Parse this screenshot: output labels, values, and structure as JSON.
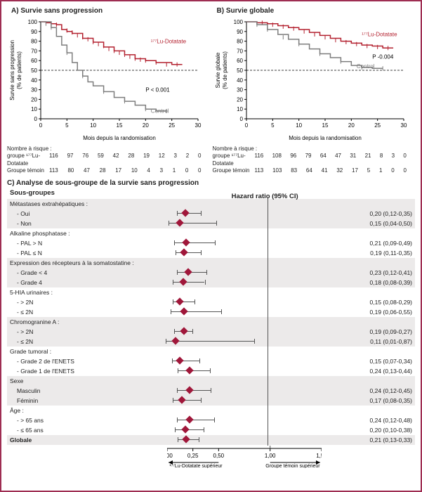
{
  "panelA": {
    "letter": "A)",
    "title": "Survie sans progression",
    "ylabel": "Survie sans progression\n(% de patients)",
    "xlabel": "Mois depuis la randomisation",
    "ylim": [
      0,
      100
    ],
    "ytick_step": 10,
    "xlim": [
      0,
      30
    ],
    "xtick_step": 5,
    "ref_line_y": 50,
    "p_text": "P < 0.001",
    "p_pos": [
      20,
      28
    ],
    "series": [
      {
        "name": "177Lu-Dotatate",
        "label": "¹⁷⁷Lu-Dotatate",
        "label_pos": [
          21,
          78
        ],
        "color": "#b3212f",
        "points": [
          [
            0,
            100
          ],
          [
            1,
            99
          ],
          [
            2,
            98
          ],
          [
            3,
            97
          ],
          [
            4,
            92
          ],
          [
            5,
            90
          ],
          [
            6,
            88
          ],
          [
            8,
            83
          ],
          [
            10,
            79
          ],
          [
            12,
            74
          ],
          [
            14,
            70
          ],
          [
            16,
            66
          ],
          [
            18,
            62
          ],
          [
            20,
            60
          ],
          [
            22,
            58
          ],
          [
            25,
            56
          ],
          [
            27,
            56
          ]
        ],
        "censors": [
          [
            2,
            98
          ],
          [
            3,
            97
          ],
          [
            4,
            94
          ],
          [
            5,
            91
          ],
          [
            6,
            89
          ],
          [
            7,
            86
          ],
          [
            8,
            84
          ],
          [
            9,
            82
          ],
          [
            10,
            79
          ],
          [
            11,
            77
          ],
          [
            12,
            75
          ],
          [
            13,
            72
          ],
          [
            14,
            70
          ],
          [
            15,
            68
          ],
          [
            16,
            66
          ],
          [
            17,
            64
          ],
          [
            18,
            62
          ],
          [
            19,
            61
          ],
          [
            20,
            60
          ],
          [
            22,
            58
          ],
          [
            24,
            56
          ],
          [
            26,
            56
          ]
        ]
      },
      {
        "name": "Control",
        "label": "Control",
        "label_pos": [
          21,
          6
        ],
        "color": "#7d7d7d",
        "points": [
          [
            0,
            100
          ],
          [
            2,
            94
          ],
          [
            3,
            85
          ],
          [
            4,
            76
          ],
          [
            5,
            68
          ],
          [
            6,
            58
          ],
          [
            7,
            50
          ],
          [
            8,
            44
          ],
          [
            9,
            38
          ],
          [
            10,
            34
          ],
          [
            12,
            28
          ],
          [
            14,
            22
          ],
          [
            16,
            18
          ],
          [
            18,
            14
          ],
          [
            20,
            10
          ],
          [
            22,
            8
          ],
          [
            24,
            8
          ]
        ],
        "censors": [
          [
            1,
            98
          ],
          [
            2,
            94
          ],
          [
            5,
            68
          ],
          [
            8,
            44
          ],
          [
            12,
            28
          ],
          [
            16,
            18
          ],
          [
            20,
            10
          ],
          [
            24,
            8
          ]
        ]
      }
    ],
    "risk_header": "Nombre à risque :",
    "risk_rows": [
      {
        "label": "groupe ¹⁷⁷Lu-Dotatate",
        "values": [
          "116",
          "97",
          "76",
          "59",
          "42",
          "28",
          "19",
          "12",
          "3",
          "2",
          "0"
        ]
      },
      {
        "label": "Groupe témoin",
        "values": [
          "113",
          "80",
          "47",
          "28",
          "17",
          "10",
          "4",
          "3",
          "1",
          "0",
          "0"
        ]
      }
    ]
  },
  "panelB": {
    "letter": "B)",
    "title": "Survie globale",
    "ylabel": "Survie globale\n(% de patients)",
    "xlabel": "Mois depuis la randomisation",
    "ylim": [
      0,
      100
    ],
    "ytick_step": 10,
    "xlim": [
      0,
      30
    ],
    "xtick_step": 5,
    "ref_line_y": 50,
    "p_text": "P -0.004",
    "p_pos": [
      24,
      62
    ],
    "series": [
      {
        "name": "177Lu-Dotatate",
        "label": "¹⁷⁷Lu-Dotatate",
        "label_pos": [
          22,
          85
        ],
        "color": "#b3212f",
        "points": [
          [
            0,
            100
          ],
          [
            2,
            99
          ],
          [
            4,
            98
          ],
          [
            6,
            96
          ],
          [
            8,
            94
          ],
          [
            10,
            92
          ],
          [
            12,
            89
          ],
          [
            14,
            86
          ],
          [
            16,
            83
          ],
          [
            18,
            80
          ],
          [
            20,
            78
          ],
          [
            22,
            76
          ],
          [
            24,
            75
          ],
          [
            26,
            73
          ],
          [
            28,
            73
          ]
        ],
        "censors": [
          [
            3,
            99
          ],
          [
            5,
            97
          ],
          [
            7,
            95
          ],
          [
            9,
            93
          ],
          [
            11,
            90
          ],
          [
            13,
            87
          ],
          [
            15,
            84
          ],
          [
            17,
            81
          ],
          [
            19,
            79
          ],
          [
            21,
            77
          ],
          [
            23,
            75
          ],
          [
            25,
            74
          ],
          [
            27,
            73
          ]
        ]
      },
      {
        "name": "Control",
        "label": "Control",
        "label_pos": [
          21,
          52
        ],
        "color": "#7d7d7d",
        "points": [
          [
            0,
            100
          ],
          [
            2,
            97
          ],
          [
            4,
            92
          ],
          [
            6,
            87
          ],
          [
            8,
            82
          ],
          [
            10,
            77
          ],
          [
            12,
            72
          ],
          [
            14,
            67
          ],
          [
            16,
            63
          ],
          [
            18,
            59
          ],
          [
            20,
            55
          ],
          [
            22,
            53
          ],
          [
            24,
            52
          ],
          [
            26,
            52
          ]
        ],
        "censors": [
          [
            2,
            97
          ],
          [
            4,
            92
          ],
          [
            7,
            84
          ],
          [
            10,
            77
          ],
          [
            14,
            67
          ],
          [
            18,
            59
          ],
          [
            22,
            53
          ],
          [
            26,
            52
          ]
        ]
      }
    ],
    "risk_header": "Nombre à risque :",
    "risk_rows": [
      {
        "label": "groupe ¹⁷⁷Lu-Dotatate",
        "values": [
          "116",
          "108",
          "96",
          "79",
          "64",
          "47",
          "31",
          "21",
          "8",
          "3",
          "0"
        ]
      },
      {
        "label": "Groupe témoin",
        "values": [
          "113",
          "103",
          "83",
          "64",
          "41",
          "32",
          "17",
          "5",
          "1",
          "0",
          "0"
        ]
      }
    ]
  },
  "panelC": {
    "letter": "C)",
    "title": "Analyse de sous-groupe de la survie sans progression",
    "left_header": "Sous-groupes",
    "right_header": "Hazard ratio (95% CI)",
    "xlim": [
      0,
      1.5
    ],
    "xticks": [
      0.0,
      0.25,
      0.5,
      1.0,
      1.5
    ],
    "ref_x": 1.0,
    "diamond_color": "#a0173a",
    "ci_color": "#555555",
    "arrow_left": "¹⁷⁷Lu-Dotatate supérieur",
    "arrow_right": "Groupe témoin supérieur",
    "groups": [
      {
        "category": "Métastases extrahépatiques :",
        "rows": [
          {
            "label": "- Oui",
            "hr": 0.2,
            "lo": 0.12,
            "hi": 0.35,
            "text": "0,20 (0,12-0,35)"
          },
          {
            "label": "- Non",
            "hr": 0.15,
            "lo": 0.04,
            "hi": 0.5,
            "text": "0,15 (0,04-0,50)"
          }
        ]
      },
      {
        "category": "Alkaline phosphatase :",
        "rows": [
          {
            "label": "- PAL > N",
            "hr": 0.21,
            "lo": 0.09,
            "hi": 0.49,
            "text": "0,21 (0,09-0,49)"
          },
          {
            "label": "- PAL ≤ N",
            "hr": 0.19,
            "lo": 0.11,
            "hi": 0.35,
            "text": "0,19 (0,11-0,35)"
          }
        ]
      },
      {
        "category": "Expression des récepteurs à la somatostatine :",
        "rows": [
          {
            "label": "- Grade < 4",
            "hr": 0.23,
            "lo": 0.12,
            "hi": 0.41,
            "text": "0,23 (0,12-0,41)"
          },
          {
            "label": "- Grade 4",
            "hr": 0.18,
            "lo": 0.08,
            "hi": 0.39,
            "text": "0,18 (0,08-0,39)"
          }
        ]
      },
      {
        "category": "5-HIA urinaires :",
        "rows": [
          {
            "label": "- > 2N",
            "hr": 0.15,
            "lo": 0.08,
            "hi": 0.29,
            "text": "0,15 (0,08-0,29)"
          },
          {
            "label": "- ≤ 2N",
            "hr": 0.19,
            "lo": 0.06,
            "hi": 0.55,
            "text": "0,19 (0,06-0,55)"
          }
        ]
      },
      {
        "category": "Chromogranine A :",
        "rows": [
          {
            "label": "- > 2N",
            "hr": 0.19,
            "lo": 0.09,
            "hi": 0.27,
            "text": "0,19 (0,09-0,27)"
          },
          {
            "label": "- ≤ 2N",
            "hr": 0.11,
            "lo": 0.01,
            "hi": 0.87,
            "text": "0,11 (0,01-0,87)"
          }
        ]
      },
      {
        "category": "Grade tumoral :",
        "rows": [
          {
            "label": "- Grade 2 de l'ENETS",
            "hr": 0.15,
            "lo": 0.07,
            "hi": 0.34,
            "text": "0,15 (0,07-0,34)"
          },
          {
            "label": "- Grade 1 de l'ENETS",
            "hr": 0.24,
            "lo": 0.13,
            "hi": 0.44,
            "text": "0,24 (0,13-0,44)"
          }
        ]
      },
      {
        "category": "Sexe",
        "rows": [
          {
            "label": "Masculin",
            "hr": 0.24,
            "lo": 0.12,
            "hi": 0.45,
            "text": "0,24 (0,12-0,45)"
          },
          {
            "label": "Féminin",
            "hr": 0.17,
            "lo": 0.08,
            "hi": 0.35,
            "text": "0,17 (0,08-0,35)"
          }
        ]
      },
      {
        "category": "Âge :",
        "rows": [
          {
            "label": "- > 65 ans",
            "hr": 0.24,
            "lo": 0.12,
            "hi": 0.48,
            "text": "0,24 (0,12-0,48)"
          },
          {
            "label": "- ≤ 65 ans",
            "hr": 0.2,
            "lo": 0.1,
            "hi": 0.38,
            "text": "0,20 (0,10-0,38)"
          }
        ]
      }
    ],
    "overall": {
      "label": "Globale",
      "hr": 0.21,
      "lo": 0.13,
      "hi": 0.33,
      "text": "0,21 (0,13-0,33)"
    }
  }
}
